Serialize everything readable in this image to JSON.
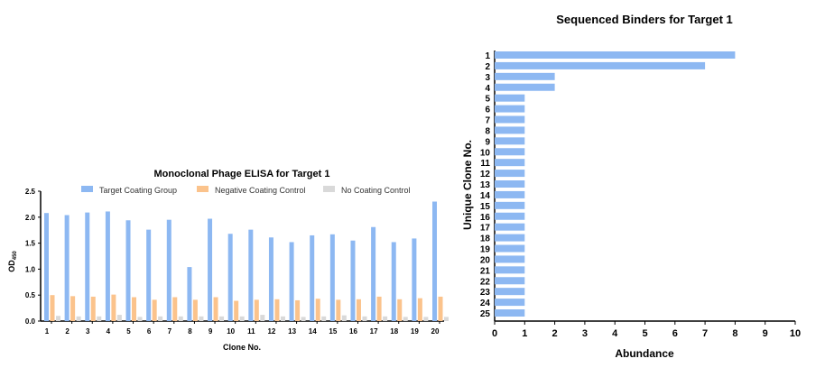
{
  "chart_data": [
    {
      "type": "bar",
      "title": "Monoclonal Phage ELISA for Target 1",
      "xlabel": "Clone No.",
      "ylabel": "OD",
      "ylabel_sub": "450",
      "categories": [
        "1",
        "2",
        "3",
        "4",
        "5",
        "6",
        "7",
        "8",
        "9",
        "10",
        "11",
        "12",
        "13",
        "14",
        "15",
        "16",
        "17",
        "18",
        "19",
        "20"
      ],
      "ylim": [
        0,
        2.5
      ],
      "yticks": [
        "0.0",
        "0.5",
        "1.0",
        "1.5",
        "2.0",
        "2.5"
      ],
      "legend_position": "top",
      "grid": false,
      "series": [
        {
          "name": "Target Coating Group",
          "color": "#8db8f2",
          "values": [
            2.08,
            2.04,
            2.09,
            2.11,
            1.94,
            1.76,
            1.95,
            1.04,
            1.97,
            1.68,
            1.76,
            1.61,
            1.52,
            1.65,
            1.67,
            1.55,
            1.81,
            1.52,
            1.59,
            2.3
          ]
        },
        {
          "name": "Negative Coating Control",
          "color": "#fbc38c",
          "values": [
            0.5,
            0.48,
            0.47,
            0.51,
            0.46,
            0.41,
            0.46,
            0.41,
            0.46,
            0.39,
            0.41,
            0.42,
            0.4,
            0.43,
            0.41,
            0.42,
            0.47,
            0.42,
            0.44,
            0.47
          ]
        },
        {
          "name": "No Coating Control",
          "color": "#d9d9d9",
          "values": [
            0.1,
            0.09,
            0.09,
            0.12,
            0.08,
            0.09,
            0.09,
            0.09,
            0.09,
            0.09,
            0.12,
            0.09,
            0.08,
            0.09,
            0.11,
            0.09,
            0.09,
            0.08,
            0.08,
            0.08
          ]
        }
      ]
    },
    {
      "type": "bar",
      "orientation": "horizontal",
      "title": "Sequenced Binders for Target 1",
      "xlabel": "Abundance",
      "ylabel": "Unique Clone No.",
      "categories": [
        "1",
        "2",
        "3",
        "4",
        "5",
        "6",
        "7",
        "8",
        "9",
        "10",
        "11",
        "12",
        "13",
        "14",
        "15",
        "16",
        "17",
        "18",
        "19",
        "20",
        "21",
        "22",
        "23",
        "24",
        "25"
      ],
      "values": [
        8,
        7,
        2,
        2,
        1,
        1,
        1,
        1,
        1,
        1,
        1,
        1,
        1,
        1,
        1,
        1,
        1,
        1,
        1,
        1,
        1,
        1,
        1,
        1,
        1
      ],
      "xlim": [
        0,
        10
      ],
      "xticks": [
        "0",
        "1",
        "2",
        "3",
        "4",
        "5",
        "6",
        "7",
        "8",
        "9",
        "10"
      ],
      "color": "#8db8f2",
      "grid": false
    }
  ]
}
